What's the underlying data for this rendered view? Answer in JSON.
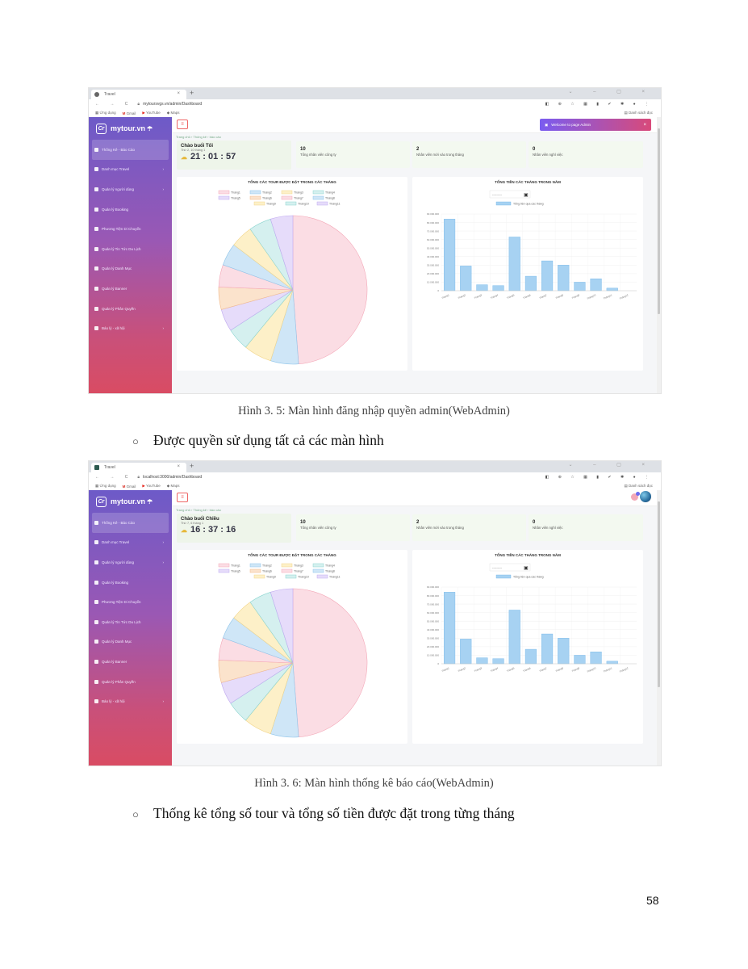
{
  "captions": {
    "fig1": "Hình 3. 5: Màn hình đăng nhập quyền admin(WebAdmin)",
    "fig2": "Hình 3. 6: Màn hình thống kê báo cáo(WebAdmin)"
  },
  "bullets": {
    "b1": "Được quyền sử dụng tất cả các màn hình",
    "b2": "Thống kê tổng số tour và tổng số tiền được đặt trong từng tháng"
  },
  "bullet_symbol": "○",
  "page_number": "58",
  "browser": {
    "tab_title": "Travel",
    "bookmarks": [
      "Ứng dụng",
      "Gmail",
      "YouTube",
      "Maps"
    ],
    "reading_list": "Danh sách đọc",
    "shot1_url": "mytoursvgs.vn/admin/Dashboard",
    "shot2_url": "localhost:3000/admin/Dashboard"
  },
  "app": {
    "brand": "mytour.vn",
    "logo": "Cr",
    "breadcrumb": "Trang chủ › Thống kê › báo cáo",
    "menu": [
      {
        "label": "Thống Kê - Báo Cáo",
        "arrow": false,
        "icon": "chart-icon"
      },
      {
        "label": "Danh mục Travel",
        "arrow": true,
        "icon": "diamond-icon"
      },
      {
        "label": "Quản lý người dùng",
        "arrow": true,
        "icon": "user-icon"
      },
      {
        "label": "Quản lý Booking",
        "arrow": false,
        "icon": "booking-icon"
      },
      {
        "label": "Phương Tiện Di Chuyển",
        "arrow": false,
        "icon": "vehicle-icon"
      },
      {
        "label": "Quản lý Tin Tức Du Lịch",
        "arrow": false,
        "icon": "news-icon"
      },
      {
        "label": "Quản lý Danh Mục",
        "arrow": false,
        "icon": "category-icon"
      },
      {
        "label": "Quản lý Banner",
        "arrow": false,
        "icon": "banner-icon"
      },
      {
        "label": "Quản lý Phân Quyền",
        "arrow": false,
        "icon": "permission-icon"
      },
      {
        "label": "Báo lý - xã hội",
        "arrow": true,
        "icon": "social-icon"
      }
    ],
    "welcome": "Welcome to page Admin",
    "stats": [
      {
        "value": "10",
        "label": "Tổng nhân viên công ty"
      },
      {
        "value": "2",
        "label": "Nhân viên mới vào trong tháng"
      },
      {
        "value": "0",
        "label": "Nhân viên nghỉ việc"
      }
    ],
    "shot1_greeting": {
      "title": "Chào buổi Tối",
      "date": "Thứ 2, 10 tháng 1",
      "time": "21 : 01 : 57"
    },
    "shot2_greeting": {
      "title": "Chào buổi Chiều",
      "date": "Thứ 7, 6 tháng 1",
      "time": "16 : 37 : 16"
    },
    "date_input": "---------"
  },
  "chart_data": [
    {
      "type": "pie",
      "title": "TỔNG CÁC TOUR ĐƯỢC ĐẶT TRONG CÁC THÁNG",
      "categories": [
        "Tháng1",
        "Tháng2",
        "Tháng3",
        "Tháng4",
        "Tháng5",
        "Tháng6",
        "Tháng7",
        "Tháng8",
        "Tháng9",
        "Tháng10",
        "Tháng11"
      ],
      "values": [
        20,
        2.5,
        2.5,
        2,
        2,
        2,
        2,
        2,
        2,
        2,
        2
      ],
      "colors": [
        "#fbdde4",
        "#cfe6f7",
        "#fdf0c8",
        "#d5f0ef",
        "#e6dcfa",
        "#fbe3cc",
        "#fbdde4",
        "#cfe6f7",
        "#fdf0c8",
        "#d5f0ef",
        "#e6dcfa"
      ],
      "borders": [
        "#f4a8b8",
        "#8ec4ea",
        "#f2d58a",
        "#8ad4cf",
        "#c0aaf0",
        "#f2b98a",
        "#f4a8b8",
        "#8ec4ea",
        "#f2d58a",
        "#8ad4cf",
        "#c0aaf0"
      ]
    },
    {
      "type": "bar",
      "title": "TỔNG TIỀN CÁC THÁNG TRONG NĂM",
      "legend": "Tổng tiền qua các tháng",
      "categories": [
        "Tháng1",
        "Tháng2",
        "Tháng3",
        "Tháng4",
        "Tháng5",
        "Tháng6",
        "Tháng7",
        "Tháng8",
        "Tháng9",
        "Tháng10",
        "Tháng11",
        "Tháng12"
      ],
      "values": [
        84000000,
        29000000,
        7000000,
        6000000,
        63000000,
        17000000,
        35000000,
        30000000,
        10000000,
        14000000,
        3000000,
        0
      ],
      "ylim": [
        0,
        90000000
      ],
      "yticks": [
        "0",
        "10.000.000",
        "20.000.000",
        "30.000.000",
        "40.000.000",
        "50.000.000",
        "60.000.000",
        "70.000.000",
        "80.000.000",
        "90.000.000"
      ],
      "bar_color": "#a7d2f2",
      "bar_border": "#6fb5e8"
    }
  ]
}
